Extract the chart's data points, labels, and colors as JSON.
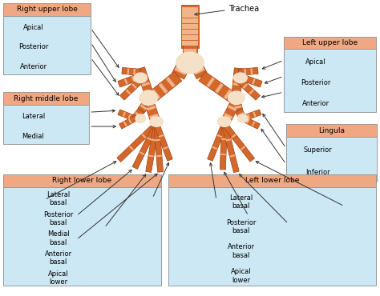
{
  "bg_color": "#ffffff",
  "box_light": "#cce8f4",
  "box_header": "#f0a882",
  "bronchi_orange": "#d4682a",
  "bronchi_light": "#f2b48a",
  "bronchi_cream": "#f5e0c8",
  "fig_width": 4.74,
  "fig_height": 3.7,
  "dpi": 100,
  "trachea_label": "Trachea",
  "rul_title": "Right upper lobe",
  "rul_items": [
    "Apical",
    "Posterior",
    "Anterior"
  ],
  "rml_title": "Right middle lobe",
  "rml_items": [
    "Lateral",
    "Medial"
  ],
  "rll_title": "Right lower lobe",
  "rll_items": [
    "Lateral\nbasal",
    "Posterior\nbasal",
    "Medial\nbasal",
    "Anterior\nbasal",
    "Apical\nlower"
  ],
  "lul_title": "Left upper lobe",
  "lul_items": [
    "Apical",
    "Posterior",
    "Anterior"
  ],
  "ling_title": "Lingula",
  "ling_items": [
    "Superior",
    "Inferior"
  ],
  "lll_title": "Left lower lobe",
  "lll_items": [
    "Lateral\nbasal",
    "Posterior\nbasal",
    "Anterior\nbasal",
    "Apical\nlower"
  ]
}
